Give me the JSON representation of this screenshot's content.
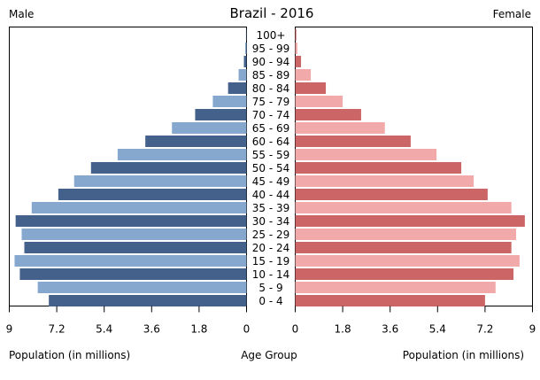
{
  "chart_data": {
    "type": "bar",
    "orientation": "horizontal-pyramid",
    "title": "Brazil - 2016",
    "left_label": "Male",
    "right_label": "Female",
    "xlabel_left": "Population (in millions)",
    "xlabel_center": "Age Group",
    "xlabel_right": "Population (in millions)",
    "xlim": [
      0,
      9
    ],
    "left_ticks": [
      "9",
      "7.2",
      "5.4",
      "3.6",
      "1.8",
      "0"
    ],
    "right_ticks": [
      "0",
      "1.8",
      "3.6",
      "5.4",
      "7.2",
      "9"
    ],
    "grid": false,
    "categories": [
      "100+",
      "95 - 99",
      "90 - 94",
      "85 - 89",
      "80 - 84",
      "75 - 79",
      "70 - 74",
      "65 - 69",
      "60 - 64",
      "55 - 59",
      "50 - 54",
      "45 - 49",
      "40 - 44",
      "35 - 39",
      "30 - 34",
      "25 - 29",
      "20 - 24",
      "15 - 19",
      "10 - 14",
      "5 - 9",
      "0 - 4"
    ],
    "series": [
      {
        "name": "Male",
        "values": [
          0.02,
          0.05,
          0.1,
          0.3,
          0.7,
          1.28,
          1.95,
          2.83,
          3.84,
          4.89,
          5.9,
          6.54,
          7.14,
          8.15,
          8.76,
          8.53,
          8.43,
          8.8,
          8.6,
          7.92,
          7.5
        ],
        "colors": [
          "#43618a",
          "#86a8ce"
        ]
      },
      {
        "name": "Female",
        "values": [
          0.04,
          0.08,
          0.22,
          0.59,
          1.16,
          1.8,
          2.5,
          3.4,
          4.38,
          5.36,
          6.3,
          6.77,
          7.3,
          8.2,
          8.71,
          8.38,
          8.2,
          8.51,
          8.28,
          7.6,
          7.2
        ],
        "colors": [
          "#cc6666",
          "#f2a9a9"
        ]
      }
    ]
  }
}
